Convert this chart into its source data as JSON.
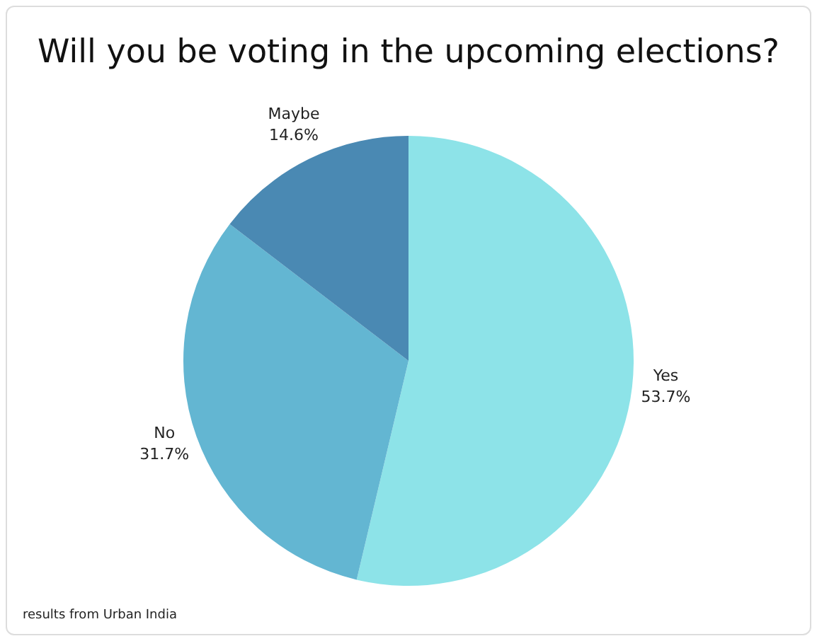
{
  "chart_data": {
    "type": "pie",
    "title": "Will you be voting in the upcoming elections?",
    "categories": [
      "Yes",
      "No",
      "Maybe"
    ],
    "values": [
      53.7,
      31.7,
      14.6
    ],
    "colors": [
      "#8de3e8",
      "#63b6d2",
      "#4a89b3"
    ],
    "value_labels": [
      "53.7%",
      "31.7%",
      "14.6%"
    ],
    "legend": false,
    "annotations": [
      "results from Urban India"
    ]
  }
}
